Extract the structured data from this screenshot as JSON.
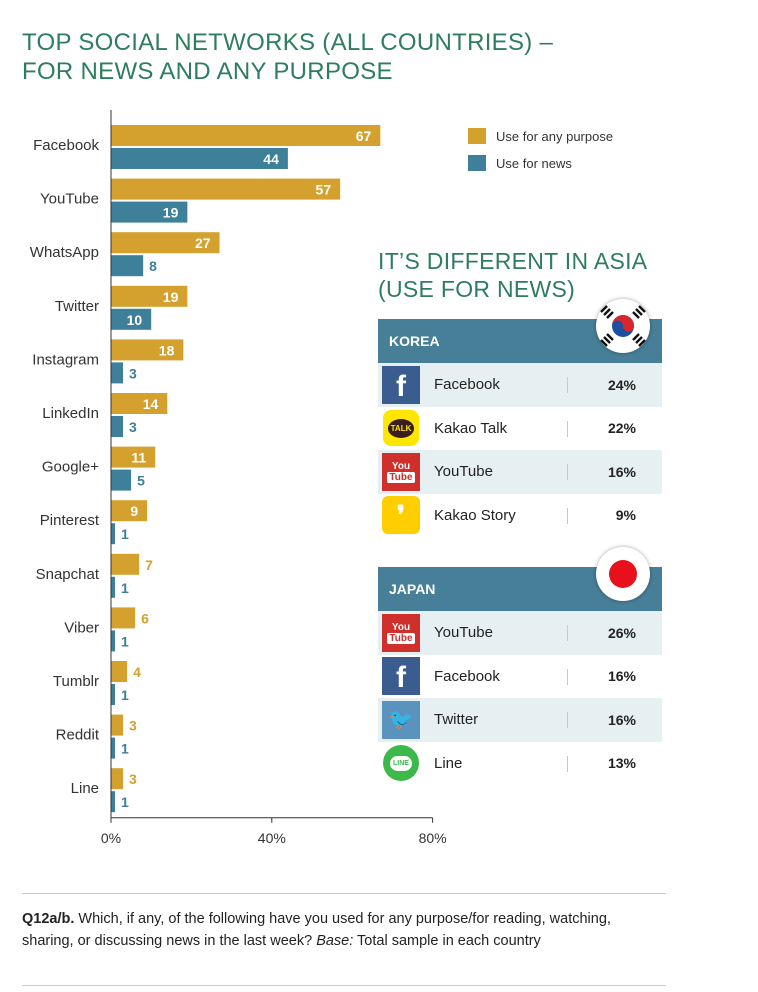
{
  "title": {
    "line1": "TOP SOCIAL NETWORKS (ALL COUNTRIES) –",
    "line2": "FOR NEWS AND ANY PURPOSE"
  },
  "chart_data": {
    "type": "bar",
    "orientation": "horizontal",
    "categories": [
      "Facebook",
      "YouTube",
      "WhatsApp",
      "Twitter",
      "Instagram",
      "LinkedIn",
      "Google+",
      "Pinterest",
      "Snapchat",
      "Viber",
      "Tumblr",
      "Reddit",
      "Line"
    ],
    "series": [
      {
        "name": "Use for any purpose",
        "color": "#d4a02e",
        "values": [
          67,
          57,
          27,
          19,
          18,
          14,
          11,
          9,
          7,
          6,
          4,
          3,
          3
        ]
      },
      {
        "name": "Use for news",
        "color": "#3e7f99",
        "values": [
          44,
          19,
          8,
          10,
          3,
          3,
          5,
          1,
          1,
          1,
          1,
          1,
          1
        ]
      }
    ],
    "xlim": [
      0,
      80
    ],
    "ticks": [
      "0%",
      "40%",
      "80%"
    ],
    "tick_values": [
      0,
      40,
      80
    ],
    "legend": "top-right"
  },
  "asia": {
    "title_line1": "IT’S DIFFERENT IN ASIA",
    "title_line2": "(USE FOR NEWS)",
    "korea": {
      "label": "KOREA",
      "rows": [
        {
          "name": "Facebook",
          "pct": "24%",
          "icon": "facebook-icon",
          "icon_text": "f",
          "icon_color": "#3b5c8f"
        },
        {
          "name": "Kakao Talk",
          "pct": "22%",
          "icon": "kakao-talk-icon",
          "icon_text": "TALK",
          "icon_color": "#ffe600"
        },
        {
          "name": "YouTube",
          "pct": "16%",
          "icon": "youtube-icon",
          "icon_text": "You Tube",
          "icon_color": "#d0302b"
        },
        {
          "name": "Kakao Story",
          "pct": "9%",
          "icon": "kakao-story-icon",
          "icon_text": "❜",
          "icon_color": "#ffce00"
        }
      ]
    },
    "japan": {
      "label": "JAPAN",
      "rows": [
        {
          "name": "YouTube",
          "pct": "26%",
          "icon": "youtube-icon",
          "icon_text": "You Tube",
          "icon_color": "#d0302b"
        },
        {
          "name": "Facebook",
          "pct": "16%",
          "icon": "facebook-icon",
          "icon_text": "f",
          "icon_color": "#3b5c8f"
        },
        {
          "name": "Twitter",
          "pct": "16%",
          "icon": "twitter-icon",
          "icon_text": "🐦",
          "icon_color": "#5b93bf"
        },
        {
          "name": "Line",
          "pct": "13%",
          "icon": "line-icon",
          "icon_text": "LINE",
          "icon_color": "#3db84a"
        }
      ]
    }
  },
  "footnote": {
    "label": "Q12a/b.",
    "text": " Which, if any, of the following have you used for any purpose/for reading, watching, sharing, or discussing news in the last week? ",
    "base_label": "Base:",
    "base_text": " Total sample in each country"
  }
}
